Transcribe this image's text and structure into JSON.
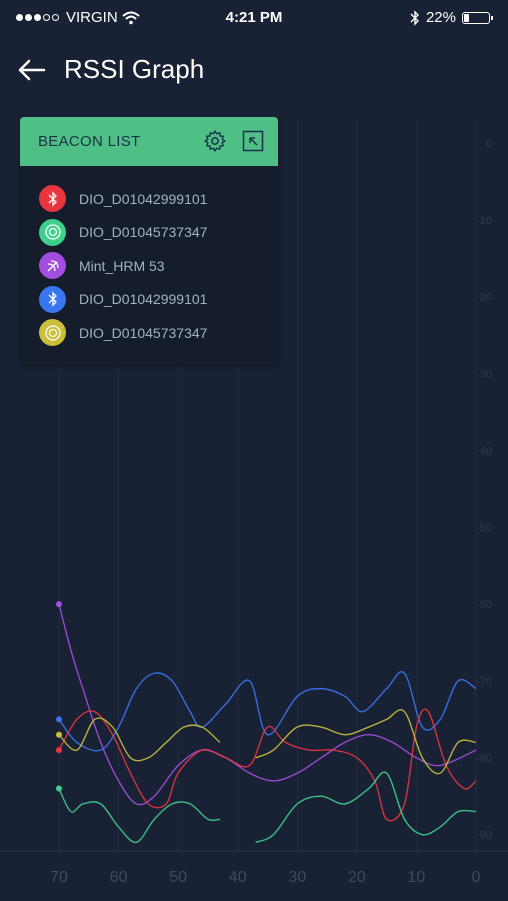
{
  "status": {
    "carrier": "VIRGIN",
    "time": "4:21 PM",
    "battery": "22%",
    "battery_level": 0.22
  },
  "header": {
    "title": "RSSI Graph"
  },
  "panel": {
    "title": "BEACON LIST",
    "beacons": [
      {
        "label": "DIO_D01042999101",
        "color": "#e8353f",
        "icon": "bluetooth-icon"
      },
      {
        "label": "DIO_D01045737347",
        "color": "#3fcf8c",
        "icon": "target-icon"
      },
      {
        "label": "Mint_HRM 53",
        "color": "#a34ee0",
        "icon": "signal-icon"
      },
      {
        "label": "DIO_D01042999101",
        "color": "#3a76f0",
        "icon": "bluetooth-icon"
      },
      {
        "label": "DIO_D01045737347",
        "color": "#c9bf3a",
        "icon": "target-icon"
      }
    ]
  },
  "chart_data": {
    "type": "line",
    "x_ticks": [
      "70",
      "60",
      "50",
      "40",
      "30",
      "20",
      "10",
      "0"
    ],
    "y_ticks": [
      "0",
      "-10",
      "-20",
      "-30",
      "-40",
      "-50",
      "-60",
      "-70",
      "-80",
      "-90"
    ],
    "xlim": [
      70,
      0
    ],
    "ylim": [
      0,
      -92
    ],
    "series": [
      {
        "color": "#a34ee0",
        "x": [
          70,
          68,
          66,
          63,
          60,
          57,
          54,
          50,
          46,
          42,
          38,
          34,
          30,
          26,
          22,
          18,
          14,
          10,
          6,
          0
        ],
        "y": [
          -60,
          -66,
          -71,
          -78,
          -83,
          -86,
          -85,
          -81,
          -79,
          -80,
          -82,
          -83,
          -82,
          -80,
          -78,
          -77,
          -78,
          -80,
          -81,
          -79
        ]
      },
      {
        "color": "#3a76f0",
        "x": [
          70,
          67,
          63,
          60,
          57,
          54,
          51,
          48,
          46,
          42,
          38,
          35,
          30,
          26,
          22,
          19,
          15,
          12,
          9,
          6,
          3,
          0
        ],
        "y": [
          -75,
          -78,
          -79,
          -76,
          -71,
          -69,
          -70,
          -74,
          -76,
          -73,
          -70,
          -77,
          -72,
          -71,
          -72,
          -74,
          -71,
          -69,
          -76,
          -75,
          -70,
          -71
        ]
      },
      {
        "color": "#e8353f",
        "x": [
          70,
          67,
          64,
          61,
          58,
          55,
          52,
          50,
          46,
          42,
          38,
          35,
          32,
          28,
          24,
          20,
          17,
          15,
          12,
          10,
          8,
          5,
          2,
          0
        ],
        "y": [
          -79,
          -75,
          -74,
          -77,
          -82,
          -86,
          -86,
          -82,
          -79,
          -80,
          -81,
          -76,
          -78,
          -79,
          -79,
          -80,
          -83,
          -88,
          -86,
          -76,
          -74,
          -81,
          -84,
          -83
        ]
      },
      {
        "color": "#c9bf3a",
        "x": [
          70,
          67,
          64,
          61,
          58,
          55,
          52,
          49,
          46,
          43
        ],
        "y": [
          -77,
          -79,
          -75,
          -76,
          -80,
          -80,
          -78,
          -76,
          -76,
          -78
        ]
      },
      {
        "color": "#c9bf3a",
        "x": [
          37,
          34,
          30,
          26,
          22,
          18,
          15,
          12,
          9,
          6,
          3,
          0
        ],
        "y": [
          -80,
          -79,
          -76,
          -76,
          -77,
          -76,
          -75,
          -74,
          -80,
          -82,
          -78,
          -78
        ]
      },
      {
        "color": "#3fcf8c",
        "x": [
          70,
          68,
          66,
          63,
          60,
          57,
          54,
          51,
          48,
          45,
          43
        ],
        "y": [
          -84,
          -87,
          -86,
          -86,
          -89,
          -91,
          -88,
          -86,
          -86,
          -88,
          -88
        ]
      },
      {
        "color": "#3fcf8c",
        "x": [
          37,
          34,
          30,
          26,
          22,
          18,
          15,
          12,
          9,
          6,
          3,
          0
        ],
        "y": [
          -91,
          -90,
          -86,
          -85,
          -86,
          -84,
          -82,
          -88,
          -90,
          -89,
          -87,
          -87
        ]
      }
    ],
    "markers": [
      {
        "color": "#a34ee0",
        "x": 70,
        "y": -60
      },
      {
        "color": "#3a76f0",
        "x": 70,
        "y": -75
      },
      {
        "color": "#c9bf3a",
        "x": 70,
        "y": -77
      },
      {
        "color": "#e8353f",
        "x": 70,
        "y": -79
      },
      {
        "color": "#3fcf8c",
        "x": 70,
        "y": -84
      }
    ]
  }
}
